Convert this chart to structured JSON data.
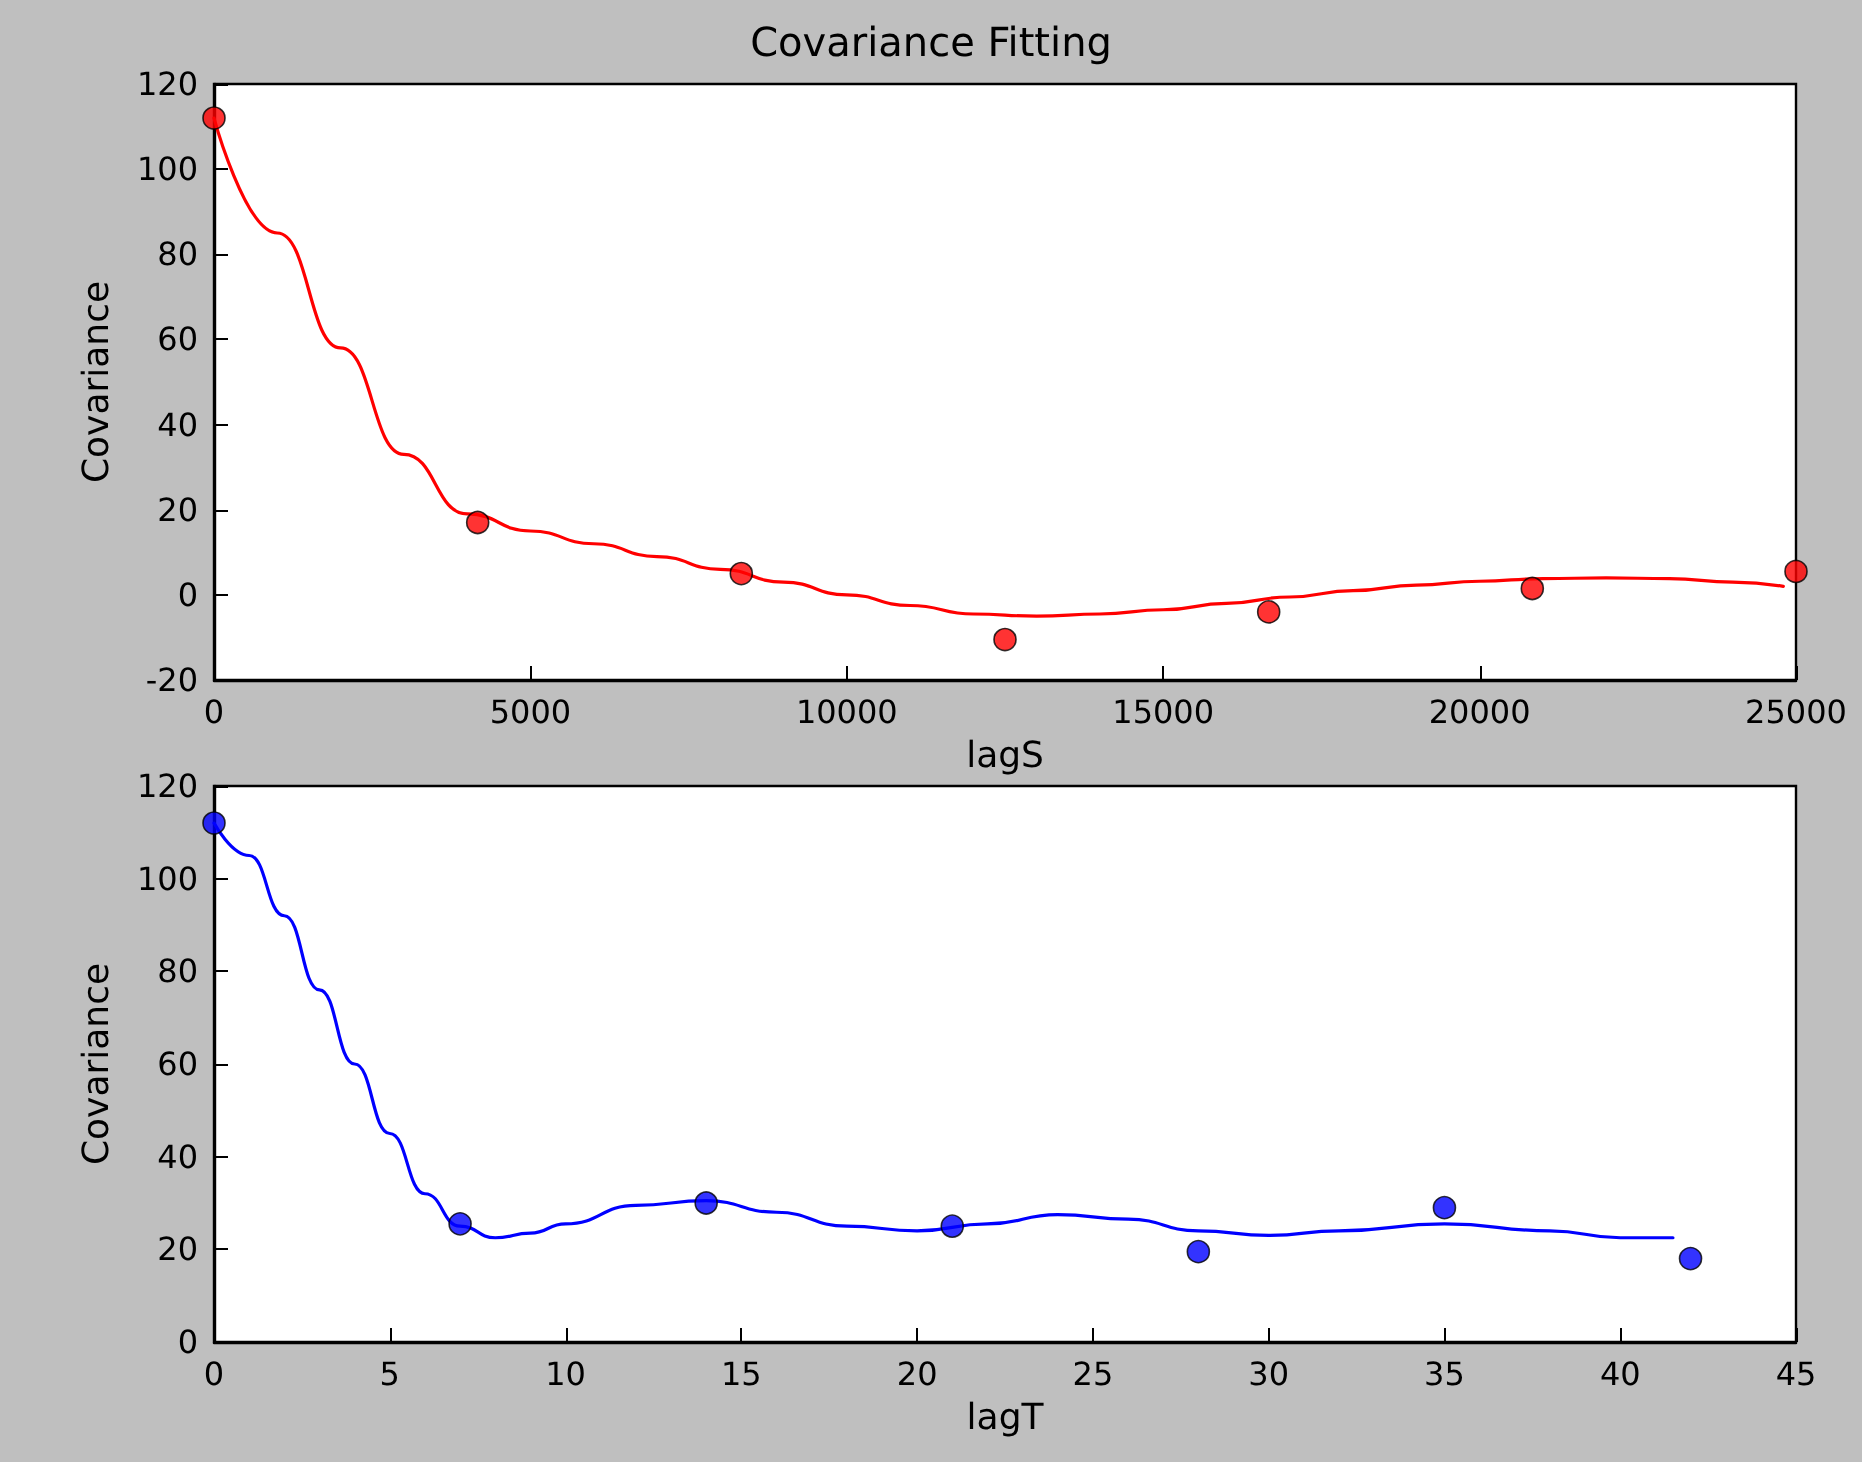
{
  "chart_data": [
    {
      "type": "scatter",
      "title": "Covariance Fitting",
      "xlabel": "lagS",
      "ylabel": "Covariance",
      "xlim": [
        0,
        25000
      ],
      "xticks": [
        0,
        5000,
        10000,
        15000,
        20000,
        25000
      ],
      "ylim": [
        -20,
        120
      ],
      "yticks": [
        -20,
        0,
        20,
        40,
        60,
        80,
        100,
        120
      ],
      "marker": "circle",
      "series": [
        {
          "color": "#ff0000",
          "x": [
            0,
            4167,
            8333,
            12500,
            16667,
            20833,
            25000
          ],
          "values": [
            112,
            17,
            5,
            -10.5,
            -4,
            1.5,
            5.5
          ]
        },
        {
          "type": "line",
          "color": "#ff0000",
          "marker": "none",
          "line_style": "solid",
          "x": [
            0,
            1000,
            2000,
            3000,
            4000,
            5000,
            6000,
            7000,
            8000,
            9000,
            10000,
            11000,
            12000,
            13000,
            14000,
            15000,
            16000,
            17000,
            18000,
            19000,
            20000,
            21000,
            22000,
            23000,
            24000,
            24800
          ],
          "values": [
            112,
            85,
            58,
            33,
            19,
            15,
            12,
            9,
            6,
            3,
            0,
            -2.5,
            -4.5,
            -5,
            -4.5,
            -3.5,
            -2,
            -0.5,
            1,
            2.3,
            3.2,
            3.8,
            4,
            3.8,
            3,
            2
          ]
        }
      ]
    },
    {
      "type": "scatter",
      "xlabel": "lagT",
      "ylabel": "Covariance",
      "xlim": [
        0,
        45
      ],
      "xticks": [
        0,
        5,
        10,
        15,
        20,
        25,
        30,
        35,
        40,
        45
      ],
      "ylim": [
        0,
        120
      ],
      "yticks": [
        0,
        20,
        40,
        60,
        80,
        100,
        120
      ],
      "marker": "circle",
      "series": [
        {
          "color": "#0000ff",
          "x": [
            0,
            7,
            14,
            21,
            28,
            35,
            42
          ],
          "values": [
            112,
            25.5,
            30,
            25,
            19.5,
            29,
            18
          ]
        },
        {
          "type": "line",
          "color": "#0000ff",
          "marker": "none",
          "line_style": "solid",
          "x": [
            0,
            1,
            2,
            3,
            4,
            5,
            6,
            7,
            8,
            9,
            10,
            12,
            14,
            16,
            18,
            20,
            22,
            24,
            26,
            28,
            30,
            32,
            35,
            38,
            40,
            41.5
          ],
          "values": [
            112,
            105,
            92,
            76,
            60,
            45,
            32,
            25,
            22.5,
            23.5,
            25.5,
            29.5,
            30.5,
            28,
            25,
            24,
            25.5,
            27.5,
            26.5,
            24,
            23,
            24,
            25.5,
            24,
            22.5,
            22.5
          ]
        }
      ]
    }
  ]
}
